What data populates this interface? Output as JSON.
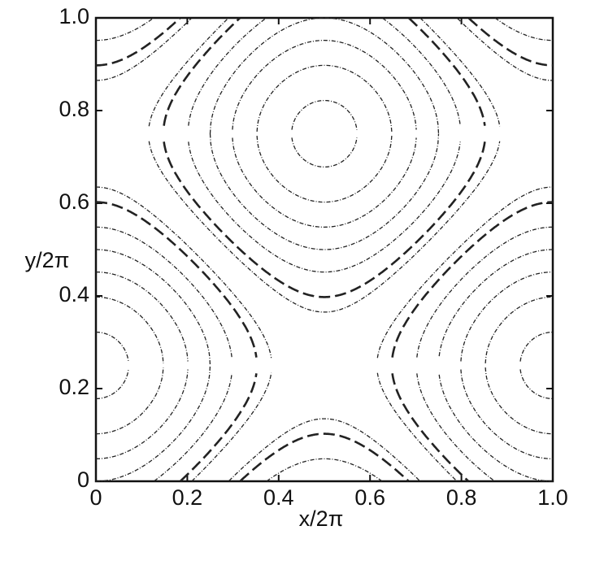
{
  "chart_data": {
    "type": "contour",
    "xlabel": "x/2π",
    "ylabel": "y/2π",
    "xlim": [
      0,
      1
    ],
    "ylim": [
      0,
      1
    ],
    "xticks": [
      0,
      0.2,
      0.4,
      0.6,
      0.8,
      {
        "value": 1,
        "label": "1.0"
      }
    ],
    "yticks": [
      0,
      0.2,
      0.4,
      0.6,
      0.8,
      {
        "value": 1,
        "label": "1.0"
      }
    ],
    "levels": [
      -1.9,
      -1.6,
      -1.3,
      -1,
      -0.7,
      -0.25,
      0.25,
      0.7,
      1,
      1.3,
      1.6,
      1.9
    ],
    "dashed_levels": [
      -0.4,
      0.4
    ],
    "color": "#222222"
  }
}
